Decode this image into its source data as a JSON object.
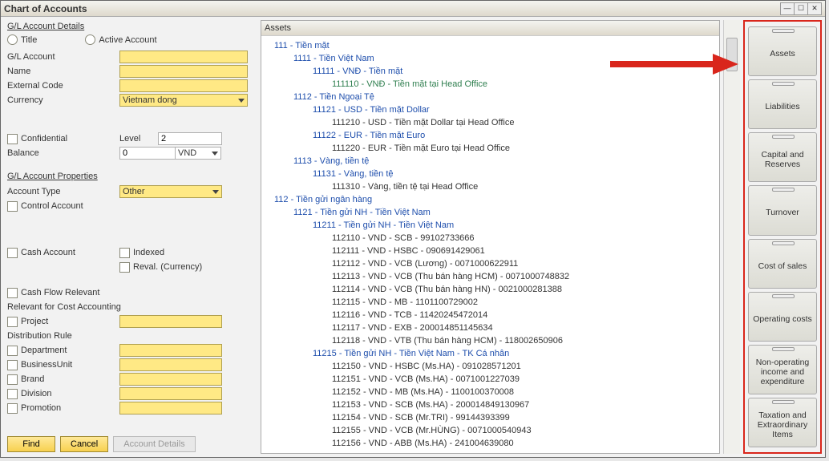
{
  "window": {
    "title": "Chart of Accounts"
  },
  "left": {
    "section1": "G/L Account Details",
    "radio_title": "Title",
    "radio_active": "Active Account",
    "glaccount_label": "G/L Account",
    "glaccount_value": "",
    "name_label": "Name",
    "name_value": "",
    "external_label": "External Code",
    "external_value": "",
    "currency_label": "Currency",
    "currency_value": "Vietnam dong",
    "confidential_label": "Confidential",
    "level_label": "Level",
    "level_value": "2",
    "balance_label": "Balance",
    "balance_value": "0",
    "balance_unit": "VND",
    "section2": "G/L Account Properties",
    "accounttype_label": "Account Type",
    "accounttype_value": "Other",
    "control_label": "Control Account",
    "cash_label": "Cash Account",
    "indexed_label": "Indexed",
    "reval_label": "Reval. (Currency)",
    "cashflow_label": "Cash Flow Relevant",
    "relevant_label": "Relevant for Cost Accounting",
    "project_label": "Project",
    "dist_label": "Distribution Rule",
    "dims": [
      "Department",
      "BusinessUnit",
      "Brand",
      "Division",
      "Promotion"
    ],
    "btn_find": "Find",
    "btn_cancel": "Cancel",
    "btn_details": "Account Details"
  },
  "tree": {
    "header": "Assets",
    "nodes": [
      {
        "lvl": 1,
        "cls": "",
        "label": "111 - Tiền mặt"
      },
      {
        "lvl": 2,
        "cls": "",
        "label": "1111 - Tiền Việt Nam"
      },
      {
        "lvl": 3,
        "cls": "",
        "label": "11111 - VNĐ - Tiền mặt"
      },
      {
        "lvl": 4,
        "cls": "green",
        "label": "111110 - VNĐ - Tiền mặt tại Head Office"
      },
      {
        "lvl": 2,
        "cls": "",
        "label": "1112 - Tiền Ngoại Tệ"
      },
      {
        "lvl": 3,
        "cls": "",
        "label": "11121 - USD - Tiền mặt Dollar"
      },
      {
        "lvl": 5,
        "cls": "black",
        "label": "111210 - USD - Tiền mặt Dollar tại Head Office"
      },
      {
        "lvl": 3,
        "cls": "",
        "label": "11122 - EUR - Tiền mặt Euro"
      },
      {
        "lvl": 5,
        "cls": "black",
        "label": "111220 - EUR - Tiền mặt Euro tại Head Office"
      },
      {
        "lvl": 2,
        "cls": "",
        "label": "1113 - Vàng, tiền tệ"
      },
      {
        "lvl": 3,
        "cls": "",
        "label": "11131 - Vàng, tiền tệ"
      },
      {
        "lvl": 5,
        "cls": "black",
        "label": "111310 - Vàng, tiền tệ tại Head Office"
      },
      {
        "lvl": 1,
        "cls": "",
        "label": "112 - Tiền gửi ngân hàng"
      },
      {
        "lvl": 2,
        "cls": "",
        "label": "1121 - Tiền gửi NH - Tiền Việt Nam"
      },
      {
        "lvl": 3,
        "cls": "",
        "label": "11211 - Tiền gửi NH - Tiền Việt Nam"
      },
      {
        "lvl": 5,
        "cls": "black",
        "label": "112110 - VND - SCB - 99102733666"
      },
      {
        "lvl": 5,
        "cls": "black",
        "label": "112111 - VND - HSBC - 090691429061"
      },
      {
        "lvl": 5,
        "cls": "black",
        "label": "112112 - VND - VCB (Lương) - 0071000622911"
      },
      {
        "lvl": 5,
        "cls": "black",
        "label": "112113 - VND - VCB (Thu bán hàng HCM) - 0071000748832"
      },
      {
        "lvl": 5,
        "cls": "black",
        "label": "112114 - VND - VCB (Thu bán hàng HN) - 0021000281388"
      },
      {
        "lvl": 5,
        "cls": "black",
        "label": "112115 - VND - MB - 1101100729002"
      },
      {
        "lvl": 5,
        "cls": "black",
        "label": "112116 - VND - TCB - 11420245472014"
      },
      {
        "lvl": 5,
        "cls": "black",
        "label": "112117 - VND - EXB - 200014851145634"
      },
      {
        "lvl": 5,
        "cls": "black",
        "label": "112118 - VND - VTB (Thu bán hàng HCM) - 118002650906"
      },
      {
        "lvl": 3,
        "cls": "",
        "label": "11215 - Tiền gửi NH - Tiền Việt Nam - TK Cá nhân"
      },
      {
        "lvl": 5,
        "cls": "black",
        "label": "112150 - VND - HSBC (Ms.HA) - 091028571201"
      },
      {
        "lvl": 5,
        "cls": "black",
        "label": "112151 - VND - VCB (Ms.HA) - 0071001227039"
      },
      {
        "lvl": 5,
        "cls": "black",
        "label": "112152 - VND - MB (Ms.HA) - 1100100370008"
      },
      {
        "lvl": 5,
        "cls": "black",
        "label": "112153 - VND - SCB (Ms.HA) -  200014849130967"
      },
      {
        "lvl": 5,
        "cls": "black",
        "label": "112154 - VND - SCB (Mr.TRI) -  99144393399"
      },
      {
        "lvl": 5,
        "cls": "black",
        "label": "112155 - VND - VCB (Mr.HÙNG)  -  0071000540943"
      },
      {
        "lvl": 5,
        "cls": "black",
        "label": "112156 - VND - ABB (Ms.HA) -  241004639080"
      }
    ]
  },
  "drawers": [
    "Assets",
    "Liabilities",
    "Capital and Reserves",
    "Turnover",
    "Cost of sales",
    "Operating costs",
    "Non-operating income and expenditure",
    "Taxation and Extraordinary Items"
  ],
  "colors": {
    "arrow": "#d9261c"
  }
}
